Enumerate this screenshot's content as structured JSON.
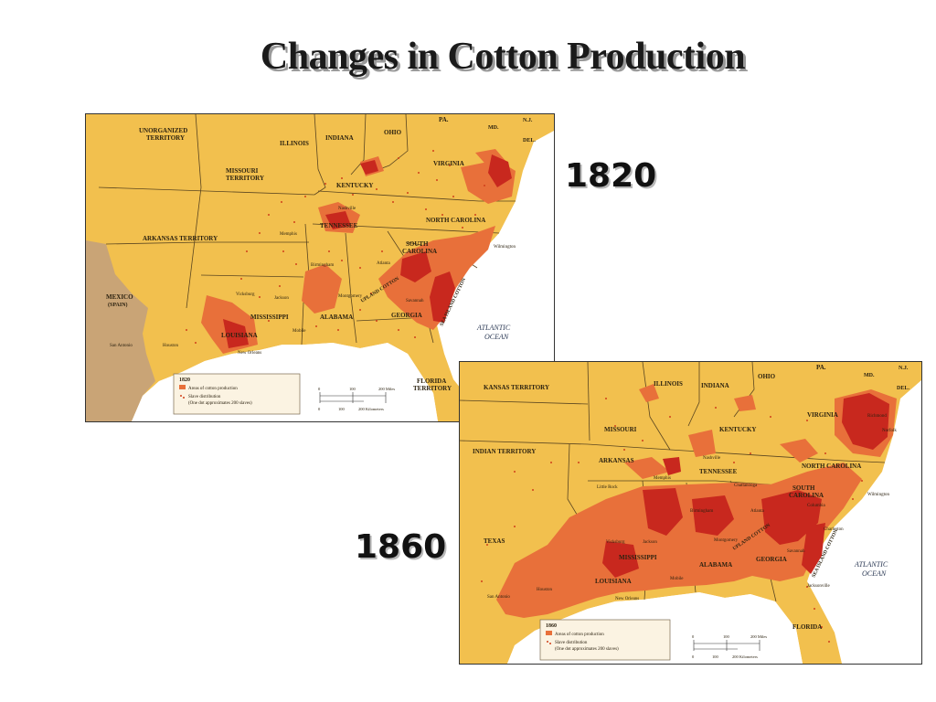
{
  "title": "Changes in Cotton Production",
  "map_1820": {
    "year_label": "1820",
    "territories": [
      "UNORGANIZED",
      "TERRITORY",
      "MISSOURI",
      "TERRITORY",
      "ARKANSAS TERRITORY",
      "MEXICO",
      "(SPAIN)",
      "FLORIDA",
      "TERRITORY"
    ],
    "states": [
      "ILLINOIS",
      "INDIANA",
      "OHIO",
      "PA.",
      "MD.",
      "N.J.",
      "DEL.",
      "VIRGINIA",
      "KENTUCKY",
      "TENNESSEE",
      "NORTH CAROLINA",
      "SOUTH",
      "CAROLINA",
      "GEORGIA",
      "ALABAMA",
      "MISSISSIPPI",
      "LOUISIANA"
    ],
    "cities": [
      "Memphis",
      "Nashville",
      "Birmingham",
      "Atlanta",
      "Montgomery",
      "Vicksburg",
      "Jackson",
      "Mobile",
      "New Orleans",
      "San Antonio",
      "Houston",
      "Savannah",
      "Wilmington"
    ],
    "belts": [
      "UPLAND COTTON",
      "SEA ISLAND COTTON"
    ],
    "ocean": [
      "ATLANTIC",
      "OCEAN"
    ],
    "legend": {
      "year": "1820",
      "areas": "Areas of cotton production",
      "slave": "Slave distribution",
      "slave_note": "(One dot approximates 200 slaves)"
    },
    "scale": {
      "miles": [
        "0",
        "100",
        "200 Miles"
      ],
      "km": [
        "0",
        "100",
        "200 Kilometers"
      ]
    }
  },
  "map_1860": {
    "year_label": "1860",
    "territories": [
      "KANSAS TERRITORY",
      "INDIAN TERRITORY"
    ],
    "states": [
      "ILLINOIS",
      "INDIANA",
      "OHIO",
      "PA.",
      "MD.",
      "N.J.",
      "DEL.",
      "MISSOURI",
      "KENTUCKY",
      "VIRGINIA",
      "ARKANSAS",
      "TENNESSEE",
      "NORTH CAROLINA",
      "SOUTH",
      "CAROLINA",
      "TEXAS",
      "MISSISSIPPI",
      "ALABAMA",
      "GEORGIA",
      "LOUISIANA",
      "FLORIDA"
    ],
    "cities": [
      "Richmond",
      "Norfolk",
      "Nashville",
      "Memphis",
      "Little Rock",
      "Chattanooga",
      "Atlanta",
      "Birmingham",
      "Montgomery",
      "Columbia",
      "Charleston",
      "Savannah",
      "Wilmington",
      "Vicksburg",
      "Jackson",
      "Mobile",
      "New Orleans",
      "Houston",
      "San Antonio",
      "Jacksonville"
    ],
    "belts": [
      "UPLAND COTTON",
      "SEA ISLAND COTTON"
    ],
    "ocean": [
      "ATLANTIC",
      "OCEAN"
    ],
    "legend": {
      "year": "1860",
      "areas": "Areas of cotton production",
      "slave": "Slave distribution",
      "slave_note": "(One dot approximates 200 slaves)"
    },
    "scale": {
      "miles": [
        "0",
        "100",
        "200 Miles"
      ],
      "km": [
        "0",
        "100",
        "200 Kilometers"
      ]
    }
  },
  "colors": {
    "land": "#f2c04e",
    "foreign": "#c9a476",
    "water": "#ffffff",
    "cotton": "#e8703a",
    "cotton_dense": "#c8281e",
    "dots": "#d0401a"
  }
}
